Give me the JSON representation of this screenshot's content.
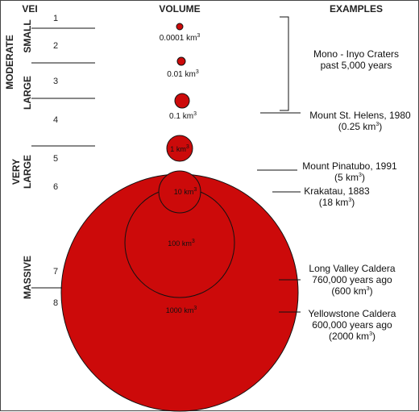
{
  "headers": {
    "vei": "VEI",
    "volume": "VOLUME",
    "examples": "EXAMPLES"
  },
  "vei_numbers": [
    "1",
    "2",
    "3",
    "4",
    "5",
    "6",
    "7",
    "8"
  ],
  "categories": {
    "moderate": "MODERATE",
    "small": "SMALL",
    "large": "LARGE",
    "very_large_1": "VERY",
    "very_large_2": "LARGE",
    "massive": "MASSIVE"
  },
  "volume_unit": "km",
  "volume_unit_exp": "3",
  "volumes": [
    {
      "value": "0.0001",
      "km3": 0.0001
    },
    {
      "value": "0.01",
      "km3": 0.01
    },
    {
      "value": "0.1",
      "km3": 0.1
    },
    {
      "value": "1",
      "km3": 1
    },
    {
      "value": "10",
      "km3": 10
    },
    {
      "value": "100",
      "km3": 100
    },
    {
      "value": "1000",
      "km3": 1000
    }
  ],
  "examples": {
    "mono_1": "Mono - Inyo Craters",
    "mono_2": "past 5,000 years",
    "sth_1": "Mount St. Helens, 1980",
    "sth_2_pre": "(0.25 km",
    "sth_2_post": ")",
    "pin_1": "Mount Pinatubo, 1991",
    "pin_2_pre": "(5 km",
    "pin_2_post": ")",
    "kra_1": "Krakatau, 1883",
    "kra_2_pre": "(18 km",
    "kra_2_post": ")",
    "lv_1": "Long Valley Caldera",
    "lv_2": "760,000 years ago",
    "lv_3_pre": "(600 km",
    "lv_3_post": ")",
    "ys_1": "Yellowstone Caldera",
    "ys_2": "600,000 years ago",
    "ys_3_pre": "(2000 km",
    "ys_3_post": ")"
  },
  "colors": {
    "circle_fill": "#cc0a0a",
    "line": "#111111"
  }
}
